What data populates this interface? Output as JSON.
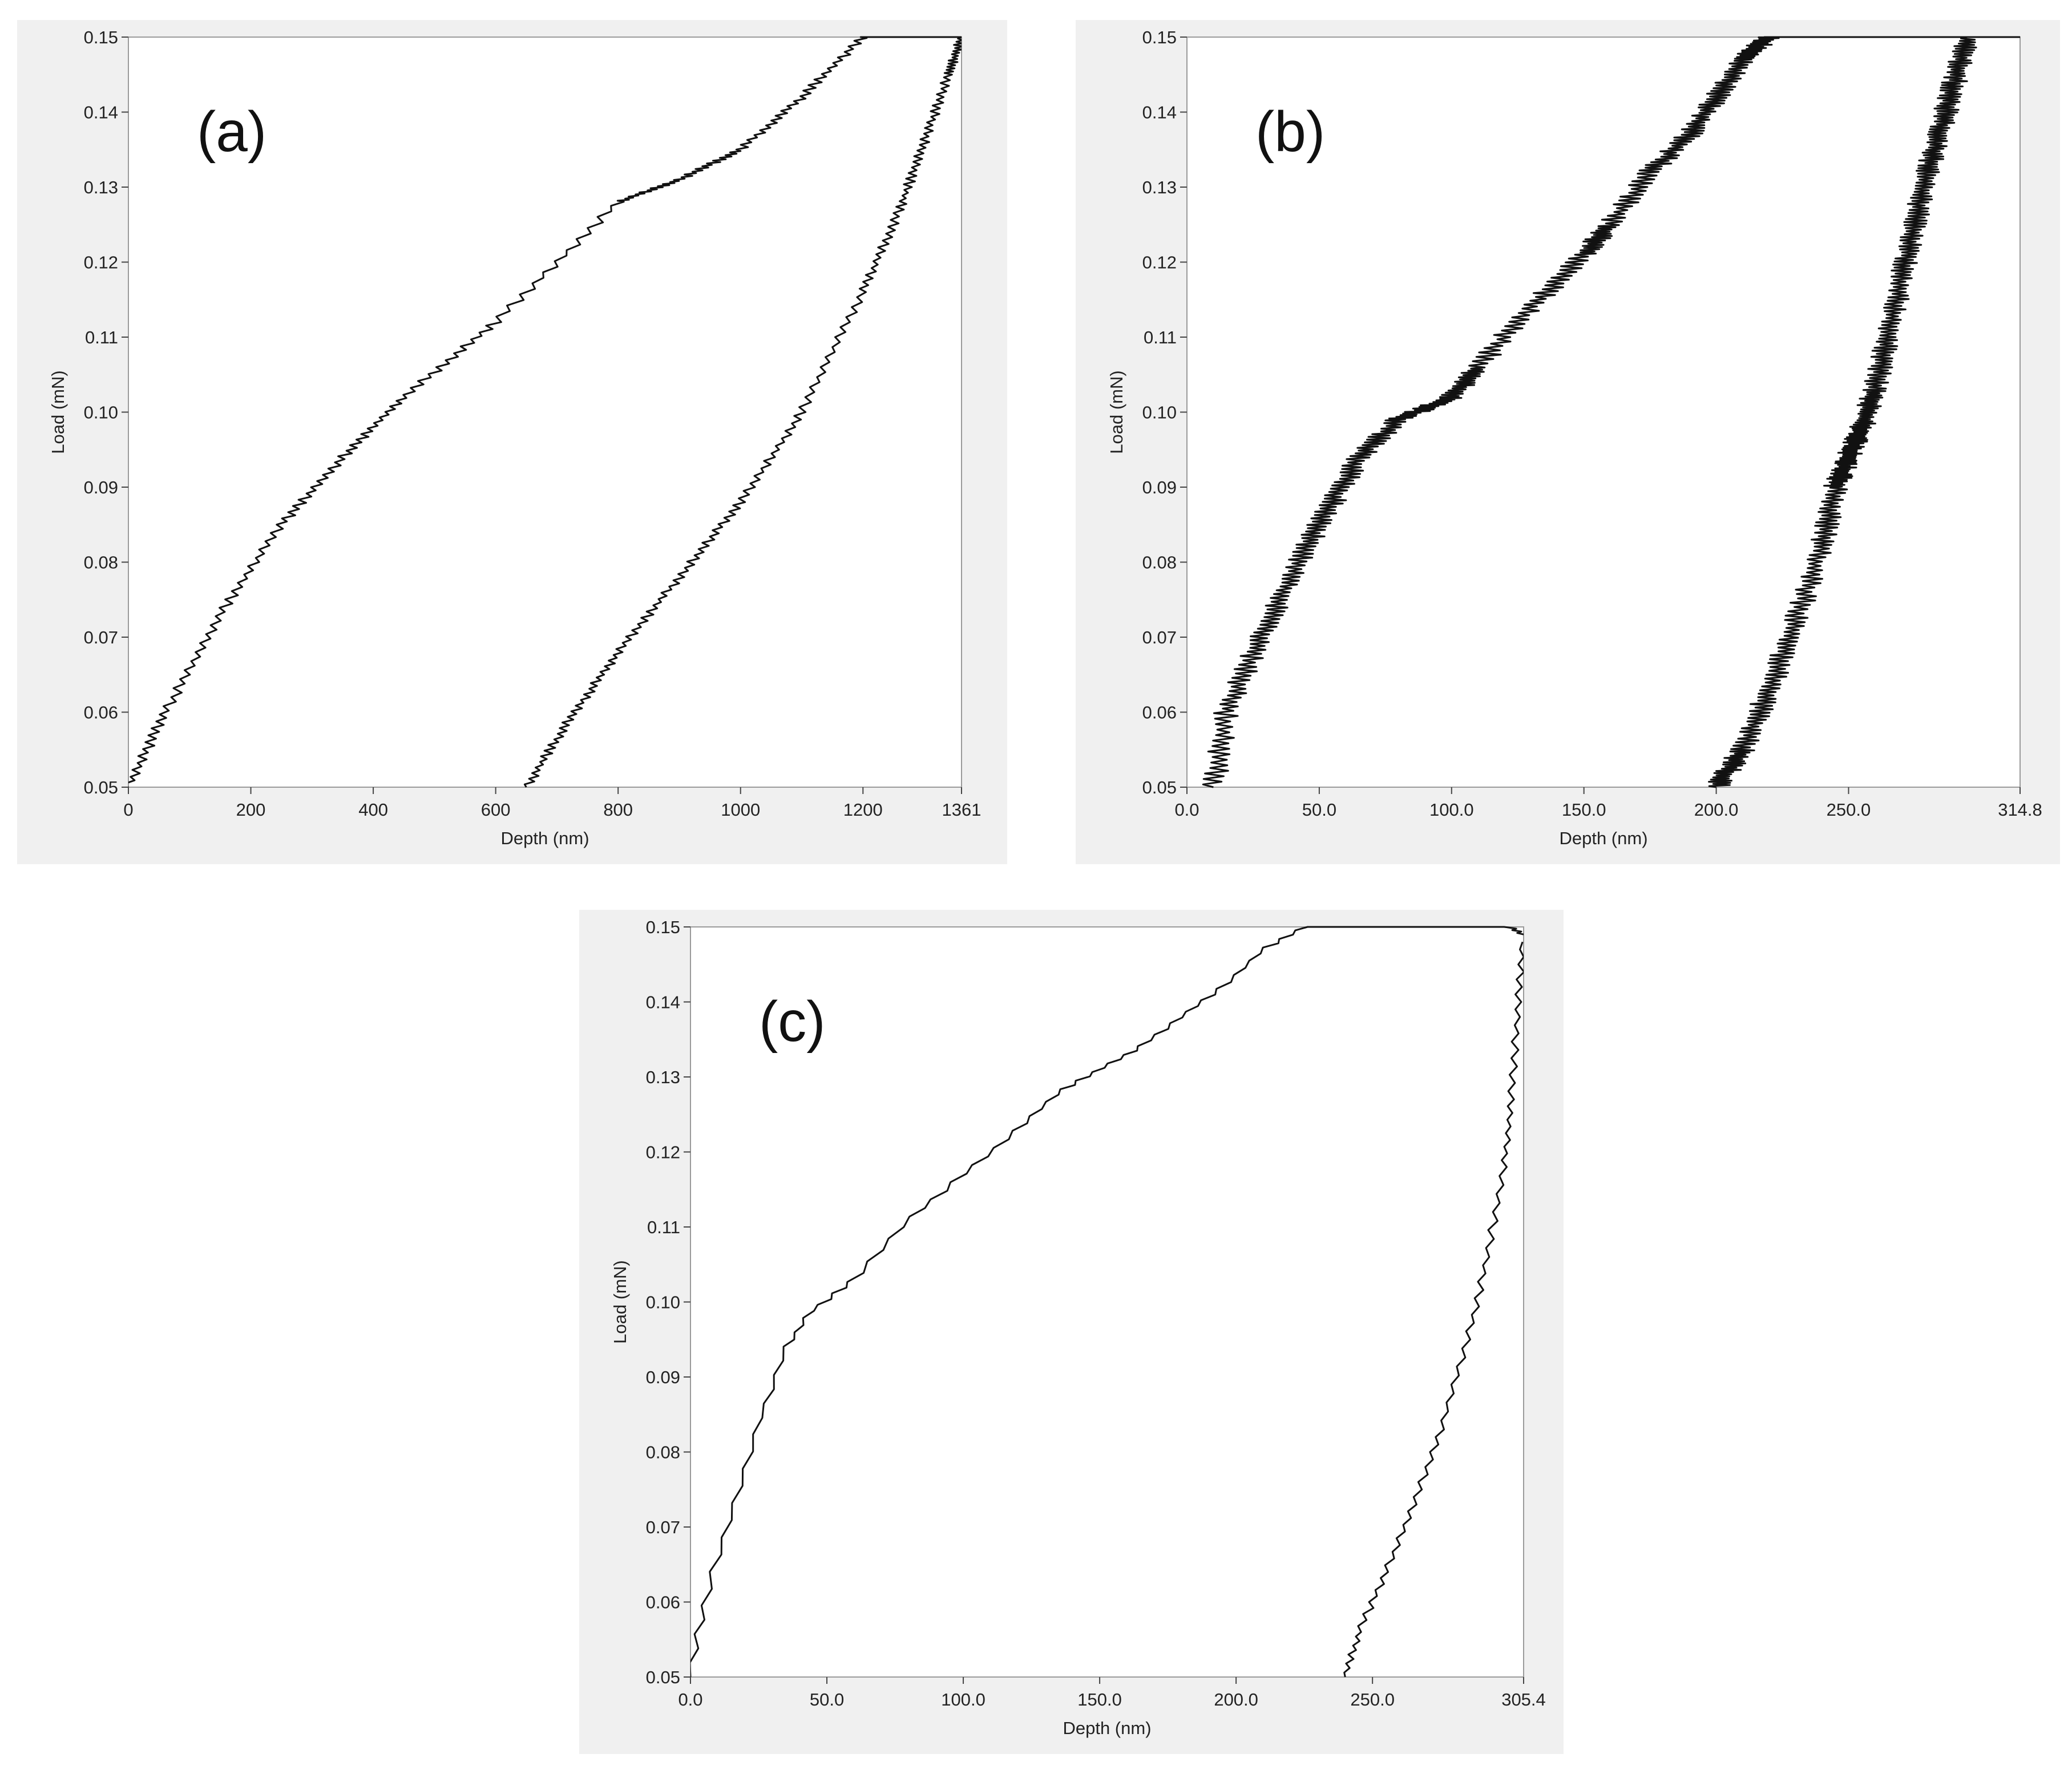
{
  "chart_data": [
    {
      "type": "line",
      "panel_label": "(a)",
      "xlabel": "Depth (nm)",
      "ylabel": "Load (mN)",
      "xlim": [
        0,
        1361
      ],
      "ylim": [
        0.05,
        0.15
      ],
      "x_ticks": [
        0,
        200,
        400,
        600,
        800,
        1000,
        1200,
        1361
      ],
      "x_tick_labels": [
        "0",
        "200",
        "400",
        "600",
        "800",
        "1000",
        "1200",
        "1361"
      ],
      "y_ticks": [
        0.05,
        0.06,
        0.07,
        0.08,
        0.09,
        0.1,
        0.11,
        0.12,
        0.13,
        0.14,
        0.15
      ],
      "y_tick_labels": [
        "0.05",
        "0.06",
        "0.07",
        "0.08",
        "0.09",
        "0.10",
        "0.11",
        "0.12",
        "0.13",
        "0.14",
        "0.15"
      ],
      "grid": false,
      "series": [
        {
          "role": "loading",
          "noise": 10,
          "noise_n": 260,
          "x": [
            0,
            60,
            150,
            250,
            350,
            450,
            600,
            800,
            900,
            1000,
            1100,
            1200,
            1361
          ],
          "y": [
            0.05,
            0.06,
            0.073,
            0.085,
            0.094,
            0.102,
            0.112,
            0.128,
            0.131,
            0.135,
            0.142,
            0.15,
            0.15
          ]
        },
        {
          "role": "unloading",
          "noise": 9,
          "noise_n": 240,
          "x": [
            650,
            720,
            800,
            900,
            1000,
            1100,
            1200,
            1260,
            1300,
            1340,
            1361
          ],
          "y": [
            0.05,
            0.059,
            0.068,
            0.078,
            0.088,
            0.1,
            0.116,
            0.127,
            0.136,
            0.145,
            0.15
          ]
        }
      ]
    },
    {
      "type": "line",
      "panel_label": "(b)",
      "xlabel": "Depth (nm)",
      "ylabel": "Load (mN)",
      "xlim": [
        0,
        314.8
      ],
      "ylim": [
        0.05,
        0.15
      ],
      "x_ticks": [
        0,
        50,
        100,
        150,
        200,
        250,
        314.8
      ],
      "x_tick_labels": [
        "0.0",
        "50.0",
        "100.0",
        "150.0",
        "200.0",
        "250.0",
        "314.8"
      ],
      "y_ticks": [
        0.05,
        0.06,
        0.07,
        0.08,
        0.09,
        0.1,
        0.11,
        0.12,
        0.13,
        0.14,
        0.15
      ],
      "y_tick_labels": [
        "0.05",
        "0.06",
        "0.07",
        "0.08",
        "0.09",
        "0.10",
        "0.11",
        "0.12",
        "0.13",
        "0.14",
        "0.15"
      ],
      "grid": false,
      "series": [
        {
          "role": "loading",
          "noise": 22,
          "noise_n": 520,
          "x": [
            10,
            15,
            25,
            35,
            45,
            55,
            65,
            80,
            100,
            110,
            130,
            150,
            160,
            175,
            190,
            200,
            210,
            220,
            240,
            314.8
          ],
          "y": [
            0.05,
            0.06,
            0.068,
            0.075,
            0.082,
            0.088,
            0.094,
            0.099,
            0.102,
            0.106,
            0.114,
            0.121,
            0.125,
            0.132,
            0.137,
            0.142,
            0.147,
            0.15,
            0.15,
            0.15
          ]
        },
        {
          "role": "unloading",
          "noise": 22,
          "noise_n": 520,
          "x": [
            200,
            210,
            220,
            230,
            240,
            245,
            250,
            255,
            260,
            265,
            270,
            275,
            280,
            285,
            290,
            295
          ],
          "y": [
            0.05,
            0.055,
            0.063,
            0.072,
            0.082,
            0.09,
            0.094,
            0.098,
            0.103,
            0.11,
            0.118,
            0.125,
            0.132,
            0.138,
            0.144,
            0.15
          ]
        }
      ]
    },
    {
      "type": "line",
      "panel_label": "(c)",
      "xlabel": "Depth (nm)",
      "ylabel": "Load (mN)",
      "xlim": [
        0,
        305.4
      ],
      "ylim": [
        0.05,
        0.15
      ],
      "x_ticks": [
        0,
        50,
        100,
        150,
        200,
        250,
        305.4
      ],
      "x_tick_labels": [
        "0.0",
        "50.0",
        "100.0",
        "150.0",
        "200.0",
        "250.0",
        "305.4"
      ],
      "y_ticks": [
        0.05,
        0.06,
        0.07,
        0.08,
        0.09,
        0.1,
        0.11,
        0.12,
        0.13,
        0.14,
        0.15
      ],
      "y_tick_labels": [
        "0.05",
        "0.06",
        "0.07",
        "0.08",
        "0.09",
        "0.10",
        "0.11",
        "0.12",
        "0.13",
        "0.14",
        "0.15"
      ],
      "grid": false,
      "series": [
        {
          "role": "loading",
          "noise": 7,
          "noise_n": 110,
          "x": [
            0,
            5,
            15,
            25,
            35,
            45,
            60,
            80,
            100,
            120,
            135,
            150,
            165,
            180,
            195,
            210,
            225,
            240,
            260,
            280,
            300,
            305.4
          ],
          "y": [
            0.05,
            0.06,
            0.072,
            0.084,
            0.094,
            0.099,
            0.103,
            0.111,
            0.117,
            0.123,
            0.128,
            0.131,
            0.134,
            0.138,
            0.142,
            0.147,
            0.15,
            0.15,
            0.15,
            0.15,
            0.15,
            0.149
          ]
        },
        {
          "role": "unloading",
          "noise": 7,
          "noise_n": 100,
          "x": [
            240,
            245,
            255,
            265,
            275,
            285,
            292,
            298,
            301,
            303,
            305
          ],
          "y": [
            0.05,
            0.056,
            0.064,
            0.073,
            0.083,
            0.095,
            0.106,
            0.118,
            0.127,
            0.138,
            0.148
          ]
        }
      ]
    }
  ]
}
